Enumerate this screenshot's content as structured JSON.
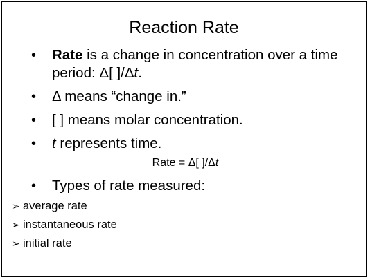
{
  "slide": {
    "title": "Reaction Rate",
    "bullets": [
      {
        "bold": "Rate",
        "text": " is a change in concentration over a time period:  Δ[ ]/Δ",
        "italic_tail": "t",
        "end": "."
      },
      {
        "text": "Δ means “change in.”"
      },
      {
        "text": "[ ] means molar concentration."
      },
      {
        "italic_head": "t",
        "text": " represents time."
      }
    ],
    "formula": {
      "prefix": "Rate =  Δ[ ]/Δ",
      "italic": "t"
    },
    "types_heading": "Types of rate measured:",
    "rate_types": [
      "average rate",
      "instantaneous rate",
      "initial rate"
    ],
    "icons": {
      "bullet": "bullet-dot-icon",
      "sub_bullet": "arrow-bullet-icon"
    }
  }
}
